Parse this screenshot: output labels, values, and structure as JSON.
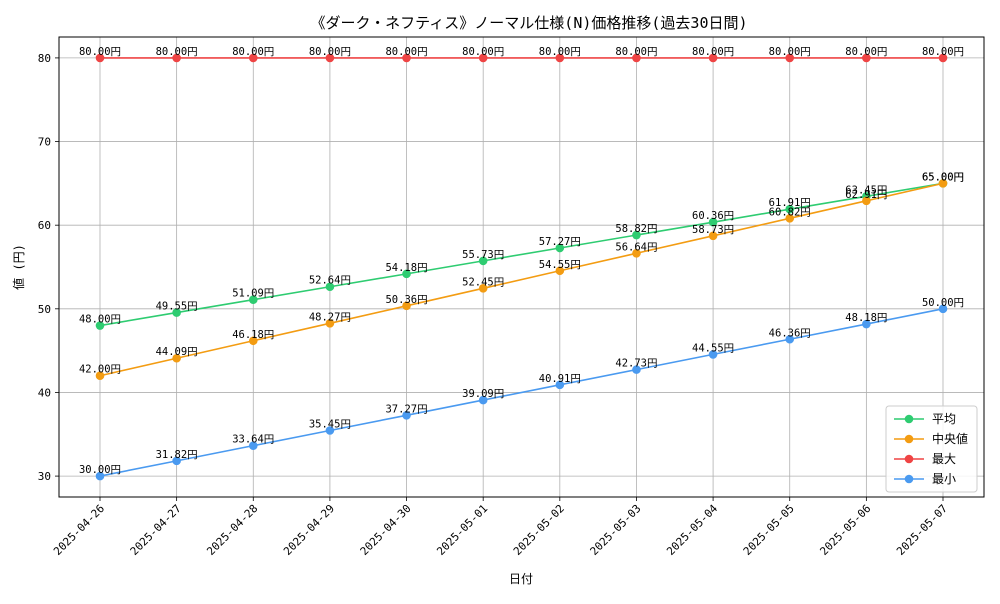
{
  "chart_data": {
    "type": "line",
    "title": "《ダーク・ネフティス》ノーマル仕様(N)価格推移(過去30日間)",
    "xlabel": "日付",
    "ylabel": "値 (円)",
    "ylim": [
      27.5,
      82.5
    ],
    "yticks": [
      30,
      40,
      50,
      60,
      70,
      80
    ],
    "grid": true,
    "legend_position": "bottom-right",
    "label_suffix": "円",
    "categories": [
      "2025-04-26",
      "2025-04-27",
      "2025-04-28",
      "2025-04-29",
      "2025-04-30",
      "2025-05-01",
      "2025-05-02",
      "2025-05-03",
      "2025-05-04",
      "2025-05-05",
      "2025-05-06",
      "2025-05-07"
    ],
    "series": [
      {
        "name": "平均",
        "color": "#2ecc71",
        "values": [
          48.0,
          49.55,
          51.09,
          52.64,
          54.18,
          55.73,
          57.27,
          58.82,
          60.36,
          61.91,
          63.45,
          65.0
        ]
      },
      {
        "name": "中央値",
        "color": "#f39c12",
        "values": [
          42.0,
          44.09,
          46.18,
          48.27,
          50.36,
          52.45,
          54.55,
          56.64,
          58.73,
          60.82,
          62.91,
          65.0
        ]
      },
      {
        "name": "最大",
        "color": "#ef4444",
        "values": [
          80.0,
          80.0,
          80.0,
          80.0,
          80.0,
          80.0,
          80.0,
          80.0,
          80.0,
          80.0,
          80.0,
          80.0
        ]
      },
      {
        "name": "最小",
        "color": "#4a9af0",
        "values": [
          30.0,
          31.82,
          33.64,
          35.45,
          37.27,
          39.09,
          40.91,
          42.73,
          44.55,
          46.36,
          48.18,
          50.0
        ]
      }
    ]
  }
}
